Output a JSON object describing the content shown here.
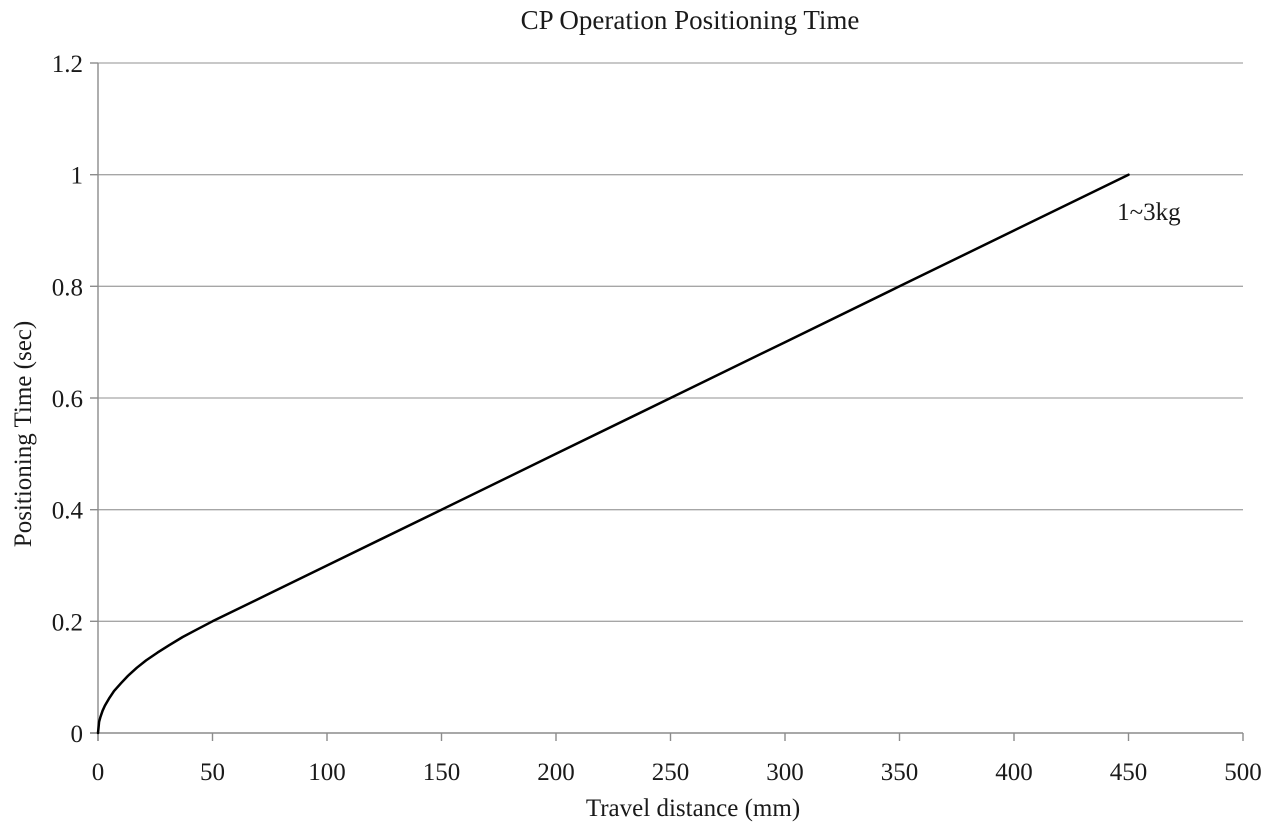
{
  "chart_data": {
    "type": "line",
    "title": "CP Operation Positioning Time",
    "xlabel": "Travel distance (mm)",
    "ylabel": "Positioning Time (sec)",
    "xlim": [
      0,
      500
    ],
    "ylim": [
      0,
      1.2
    ],
    "xticks": [
      0,
      50,
      100,
      150,
      200,
      250,
      300,
      350,
      400,
      450,
      500
    ],
    "yticks": [
      0,
      0.2,
      0.4,
      0.6,
      0.8,
      1,
      1.2
    ],
    "grid": "horizontal",
    "legend_position": "none",
    "series": [
      {
        "name": "1~3kg",
        "annotation": {
          "text": "1~3kg",
          "x": 445,
          "y": 0.919,
          "anchor": "start"
        },
        "points": [
          [
            0,
            0
          ],
          [
            0.5,
            0.02
          ],
          [
            1,
            0.028
          ],
          [
            2,
            0.04
          ],
          [
            3,
            0.049
          ],
          [
            5,
            0.063
          ],
          [
            7,
            0.075
          ],
          [
            10,
            0.089
          ],
          [
            13,
            0.102
          ],
          [
            17,
            0.117
          ],
          [
            21,
            0.13
          ],
          [
            26,
            0.144
          ],
          [
            31,
            0.157
          ],
          [
            37,
            0.172
          ],
          [
            43,
            0.185
          ],
          [
            50,
            0.2
          ],
          [
            75,
            0.25
          ],
          [
            100,
            0.3
          ],
          [
            150,
            0.4
          ],
          [
            200,
            0.5
          ],
          [
            250,
            0.6
          ],
          [
            300,
            0.7
          ],
          [
            350,
            0.8
          ],
          [
            400,
            0.9
          ],
          [
            450,
            1.0
          ]
        ]
      }
    ],
    "colors": {
      "line": "#000000",
      "gridline": "#a6a6a6",
      "axis": "#8c8c8c",
      "text": "#1a1a1a",
      "background": "#ffffff"
    }
  }
}
